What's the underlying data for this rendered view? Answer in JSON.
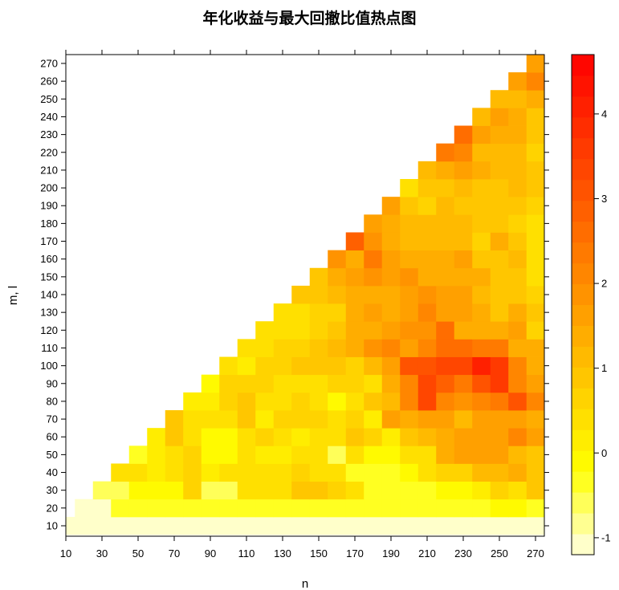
{
  "chart_data": {
    "type": "heatmap",
    "title": "年化收益与最大回撤比值热点图",
    "xlabel": "n",
    "ylabel": "m, l",
    "x_ticks": [
      10,
      30,
      50,
      70,
      90,
      110,
      130,
      150,
      170,
      190,
      210,
      230,
      250,
      270
    ],
    "y_ticks": [
      10,
      20,
      30,
      40,
      50,
      60,
      70,
      80,
      90,
      100,
      110,
      120,
      130,
      140,
      150,
      160,
      170,
      180,
      190,
      200,
      210,
      220,
      230,
      240,
      250,
      260,
      270
    ],
    "x_values": [
      10,
      20,
      30,
      40,
      50,
      60,
      70,
      80,
      90,
      100,
      110,
      120,
      130,
      140,
      150,
      160,
      170,
      180,
      190,
      200,
      210,
      220,
      230,
      240,
      250,
      260,
      270
    ],
    "y_values": [
      10,
      20,
      30,
      40,
      50,
      60,
      70,
      80,
      90,
      100,
      110,
      120,
      130,
      140,
      150,
      160,
      170,
      180,
      190,
      200,
      210,
      220,
      230,
      240,
      250,
      260,
      270
    ],
    "z_range": [
      -1.2,
      4.7
    ],
    "colorbar_ticks": [
      -1,
      0,
      1,
      2,
      3,
      4
    ],
    "colorbar_levels": 24,
    "values_note": "rows indexed by y (m, l) ascending; each row lists z for x = 10 … 270; null = no data",
    "values": [
      [
        -1.1,
        -1.0,
        -1.0,
        -1.0,
        -1.0,
        -1.0,
        -1.0,
        -1.0,
        -1.0,
        -1.0,
        -1.0,
        -1.0,
        -1.0,
        -1.0,
        -1.0,
        -1.0,
        -1.0,
        -1.0,
        -1.0,
        -1.0,
        -1.0,
        -1.0,
        -1.0,
        -1.0,
        -1.0,
        -1.0,
        -1.0
      ],
      [
        null,
        -1.0,
        -1.0,
        -0.4,
        -0.4,
        -0.4,
        -0.4,
        -0.4,
        -0.4,
        -0.4,
        -0.4,
        -0.4,
        -0.4,
        -0.4,
        -0.4,
        -0.4,
        -0.4,
        -0.4,
        -0.4,
        -0.4,
        -0.4,
        -0.4,
        -0.4,
        -0.4,
        0.0,
        0.0,
        -0.4
      ],
      [
        null,
        null,
        -0.6,
        -0.6,
        0.0,
        0.0,
        0.0,
        0.6,
        -0.5,
        -0.5,
        0.5,
        0.5,
        0.5,
        0.9,
        0.9,
        0.6,
        0.4,
        -0.3,
        -0.3,
        -0.3,
        -0.3,
        -0.1,
        -0.1,
        0.2,
        0.6,
        0.3,
        0.8
      ],
      [
        null,
        null,
        null,
        0.3,
        0.3,
        0.1,
        0.4,
        0.6,
        0.1,
        0.3,
        0.3,
        0.5,
        0.5,
        0.7,
        0.5,
        0.3,
        -0.4,
        -0.4,
        -0.4,
        0.0,
        0.3,
        0.6,
        0.6,
        1.1,
        1.2,
        1.4,
        1.0
      ],
      [
        null,
        null,
        null,
        null,
        -0.3,
        0.1,
        0.3,
        0.6,
        0.0,
        0.0,
        0.3,
        0.1,
        0.1,
        0.4,
        0.3,
        -0.5,
        0.3,
        0.0,
        0.0,
        0.3,
        0.5,
        1.4,
        1.6,
        1.6,
        1.7,
        1.2,
        0.9
      ],
      [
        null,
        null,
        null,
        null,
        null,
        0.2,
        0.8,
        0.4,
        0.0,
        0.0,
        0.3,
        0.6,
        0.3,
        0.1,
        0.4,
        0.3,
        1.0,
        0.6,
        0.2,
        0.8,
        1.2,
        1.5,
        1.7,
        1.7,
        1.7,
        2.0,
        1.7
      ],
      [
        null,
        null,
        null,
        null,
        null,
        null,
        0.9,
        0.3,
        0.3,
        0.5,
        0.8,
        0.2,
        0.6,
        0.7,
        0.7,
        0.4,
        0.7,
        0.2,
        1.6,
        1.3,
        1.7,
        1.7,
        1.2,
        1.7,
        1.7,
        1.6,
        1.3
      ],
      [
        null,
        null,
        null,
        null,
        null,
        null,
        null,
        0.2,
        0.2,
        0.7,
        0.9,
        0.4,
        0.4,
        0.6,
        0.3,
        -0.1,
        0.3,
        0.9,
        1.2,
        2.2,
        3.4,
        2.2,
        1.9,
        2.2,
        2.3,
        3.0,
        2.2
      ],
      [
        null,
        null,
        null,
        null,
        null,
        null,
        null,
        null,
        0.0,
        0.6,
        0.7,
        0.7,
        0.5,
        0.3,
        0.5,
        0.7,
        0.6,
        0.5,
        1.3,
        2.0,
        3.4,
        2.8,
        2.4,
        3.0,
        3.6,
        2.2,
        1.7
      ],
      [
        null,
        null,
        null,
        null,
        null,
        null,
        null,
        null,
        null,
        0.3,
        0.1,
        0.6,
        0.6,
        1.0,
        1.0,
        0.9,
        0.6,
        1.1,
        1.6,
        3.0,
        3.0,
        3.3,
        3.3,
        4.0,
        3.5,
        2.0,
        1.5
      ],
      [
        null,
        null,
        null,
        null,
        null,
        null,
        null,
        null,
        null,
        null,
        0.3,
        0.5,
        0.6,
        0.6,
        1.0,
        1.2,
        1.4,
        1.9,
        2.2,
        1.6,
        2.2,
        2.6,
        2.6,
        2.4,
        2.3,
        1.5,
        1.3
      ],
      [
        null,
        null,
        null,
        null,
        null,
        null,
        null,
        null,
        null,
        null,
        null,
        0.3,
        0.4,
        0.4,
        0.6,
        0.9,
        1.4,
        1.5,
        1.6,
        1.8,
        1.9,
        2.6,
        1.4,
        1.3,
        1.3,
        1.6,
        0.7
      ],
      [
        null,
        null,
        null,
        null,
        null,
        null,
        null,
        null,
        null,
        null,
        null,
        null,
        0.4,
        0.4,
        0.6,
        0.6,
        1.4,
        1.6,
        1.5,
        1.6,
        2.0,
        1.7,
        1.6,
        1.5,
        1.0,
        1.3,
        0.9
      ],
      [
        null,
        null,
        null,
        null,
        null,
        null,
        null,
        null,
        null,
        null,
        null,
        null,
        null,
        0.8,
        1.0,
        1.1,
        1.5,
        1.5,
        1.5,
        1.6,
        1.8,
        1.6,
        1.6,
        1.2,
        0.9,
        0.9,
        0.7
      ],
      [
        null,
        null,
        null,
        null,
        null,
        null,
        null,
        null,
        null,
        null,
        null,
        null,
        null,
        null,
        0.9,
        1.3,
        1.6,
        1.8,
        1.7,
        1.8,
        1.3,
        1.3,
        1.3,
        1.3,
        0.9,
        1.0,
        0.4
      ],
      [
        null,
        null,
        null,
        null,
        null,
        null,
        null,
        null,
        null,
        null,
        null,
        null,
        null,
        null,
        null,
        1.8,
        1.5,
        2.4,
        1.6,
        1.3,
        1.3,
        1.3,
        1.6,
        0.9,
        0.9,
        1.2,
        0.3
      ],
      [
        null,
        null,
        null,
        null,
        null,
        null,
        null,
        null,
        null,
        null,
        null,
        null,
        null,
        null,
        null,
        null,
        2.8,
        1.9,
        1.4,
        1.2,
        1.2,
        1.2,
        1.2,
        0.7,
        1.3,
        0.9,
        0.3
      ],
      [
        null,
        null,
        null,
        null,
        null,
        null,
        null,
        null,
        null,
        null,
        null,
        null,
        null,
        null,
        null,
        null,
        null,
        1.6,
        1.4,
        1.1,
        1.2,
        1.2,
        1.2,
        1.0,
        0.9,
        0.6,
        0.5
      ],
      [
        null,
        null,
        null,
        null,
        null,
        null,
        null,
        null,
        null,
        null,
        null,
        null,
        null,
        null,
        null,
        null,
        null,
        null,
        1.6,
        1.0,
        0.6,
        1.1,
        1.0,
        0.9,
        0.8,
        0.8,
        0.7
      ],
      [
        null,
        null,
        null,
        null,
        null,
        null,
        null,
        null,
        null,
        null,
        null,
        null,
        null,
        null,
        null,
        null,
        null,
        null,
        null,
        0.5,
        0.8,
        0.8,
        1.2,
        0.9,
        0.9,
        1.1,
        0.8
      ],
      [
        null,
        null,
        null,
        null,
        null,
        null,
        null,
        null,
        null,
        null,
        null,
        null,
        null,
        null,
        null,
        null,
        null,
        null,
        null,
        null,
        1.1,
        1.5,
        1.7,
        1.4,
        1.2,
        1.1,
        0.9
      ],
      [
        null,
        null,
        null,
        null,
        null,
        null,
        null,
        null,
        null,
        null,
        null,
        null,
        null,
        null,
        null,
        null,
        null,
        null,
        null,
        null,
        null,
        2.4,
        2.0,
        1.2,
        1.2,
        1.2,
        0.6
      ],
      [
        null,
        null,
        null,
        null,
        null,
        null,
        null,
        null,
        null,
        null,
        null,
        null,
        null,
        null,
        null,
        null,
        null,
        null,
        null,
        null,
        null,
        null,
        2.6,
        1.6,
        1.3,
        1.3,
        0.9
      ],
      [
        null,
        null,
        null,
        null,
        null,
        null,
        null,
        null,
        null,
        null,
        null,
        null,
        null,
        null,
        null,
        null,
        null,
        null,
        null,
        null,
        null,
        null,
        null,
        1.2,
        1.6,
        1.3,
        1.0
      ],
      [
        null,
        null,
        null,
        null,
        null,
        null,
        null,
        null,
        null,
        null,
        null,
        null,
        null,
        null,
        null,
        null,
        null,
        null,
        null,
        null,
        null,
        null,
        null,
        null,
        1.2,
        1.2,
        1.4
      ],
      [
        null,
        null,
        null,
        null,
        null,
        null,
        null,
        null,
        null,
        null,
        null,
        null,
        null,
        null,
        null,
        null,
        null,
        null,
        null,
        null,
        null,
        null,
        null,
        null,
        null,
        1.7,
        2.1
      ],
      [
        null,
        null,
        null,
        null,
        null,
        null,
        null,
        null,
        null,
        null,
        null,
        null,
        null,
        null,
        null,
        null,
        null,
        null,
        null,
        null,
        null,
        null,
        null,
        null,
        null,
        null,
        1.6
      ]
    ]
  }
}
